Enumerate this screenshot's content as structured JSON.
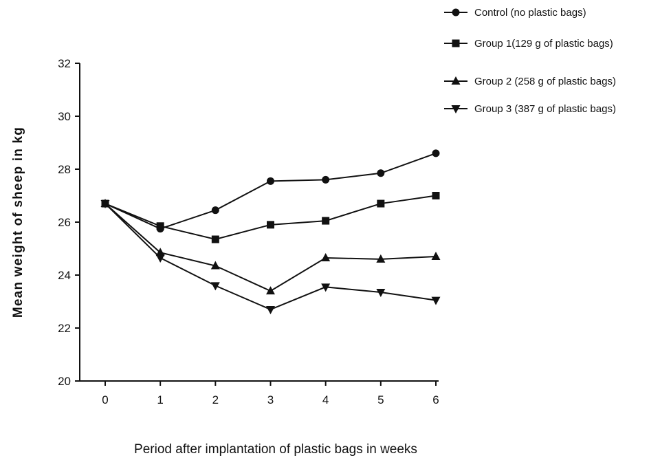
{
  "chart_data": {
    "type": "line",
    "title": "",
    "xlabel": "Period after implantation of plastic bags in weeks",
    "ylabel": "Mean weight of sheep in kg",
    "x": [
      0,
      1,
      2,
      3,
      4,
      5,
      6
    ],
    "xlim": [
      0,
      6
    ],
    "ylim": [
      20,
      32
    ],
    "yticks": [
      20,
      22,
      24,
      26,
      28,
      30,
      32
    ],
    "xticks": [
      0,
      1,
      2,
      3,
      4,
      5,
      6
    ],
    "grid": false,
    "legend_position": "top-right",
    "series": [
      {
        "name": "Control (no plastic bags)",
        "marker": "circle",
        "values": [
          26.7,
          25.75,
          26.45,
          27.55,
          27.6,
          27.85,
          28.6
        ]
      },
      {
        "name": "Group 1(129 g of plastic bags)",
        "marker": "square",
        "values": [
          26.7,
          25.85,
          25.35,
          25.9,
          26.05,
          26.7,
          27.0
        ]
      },
      {
        "name": "Group 2 (258 g of plastic bags)",
        "marker": "triangle-up",
        "values": [
          26.7,
          24.85,
          24.35,
          23.4,
          24.65,
          24.6,
          24.7
        ]
      },
      {
        "name": "Group 3 (387 g of plastic bags)",
        "marker": "triangle-down",
        "values": [
          26.7,
          24.65,
          23.6,
          22.7,
          23.55,
          23.35,
          23.05
        ]
      }
    ],
    "colors": {
      "line": "#111111",
      "marker": "#111111"
    }
  }
}
